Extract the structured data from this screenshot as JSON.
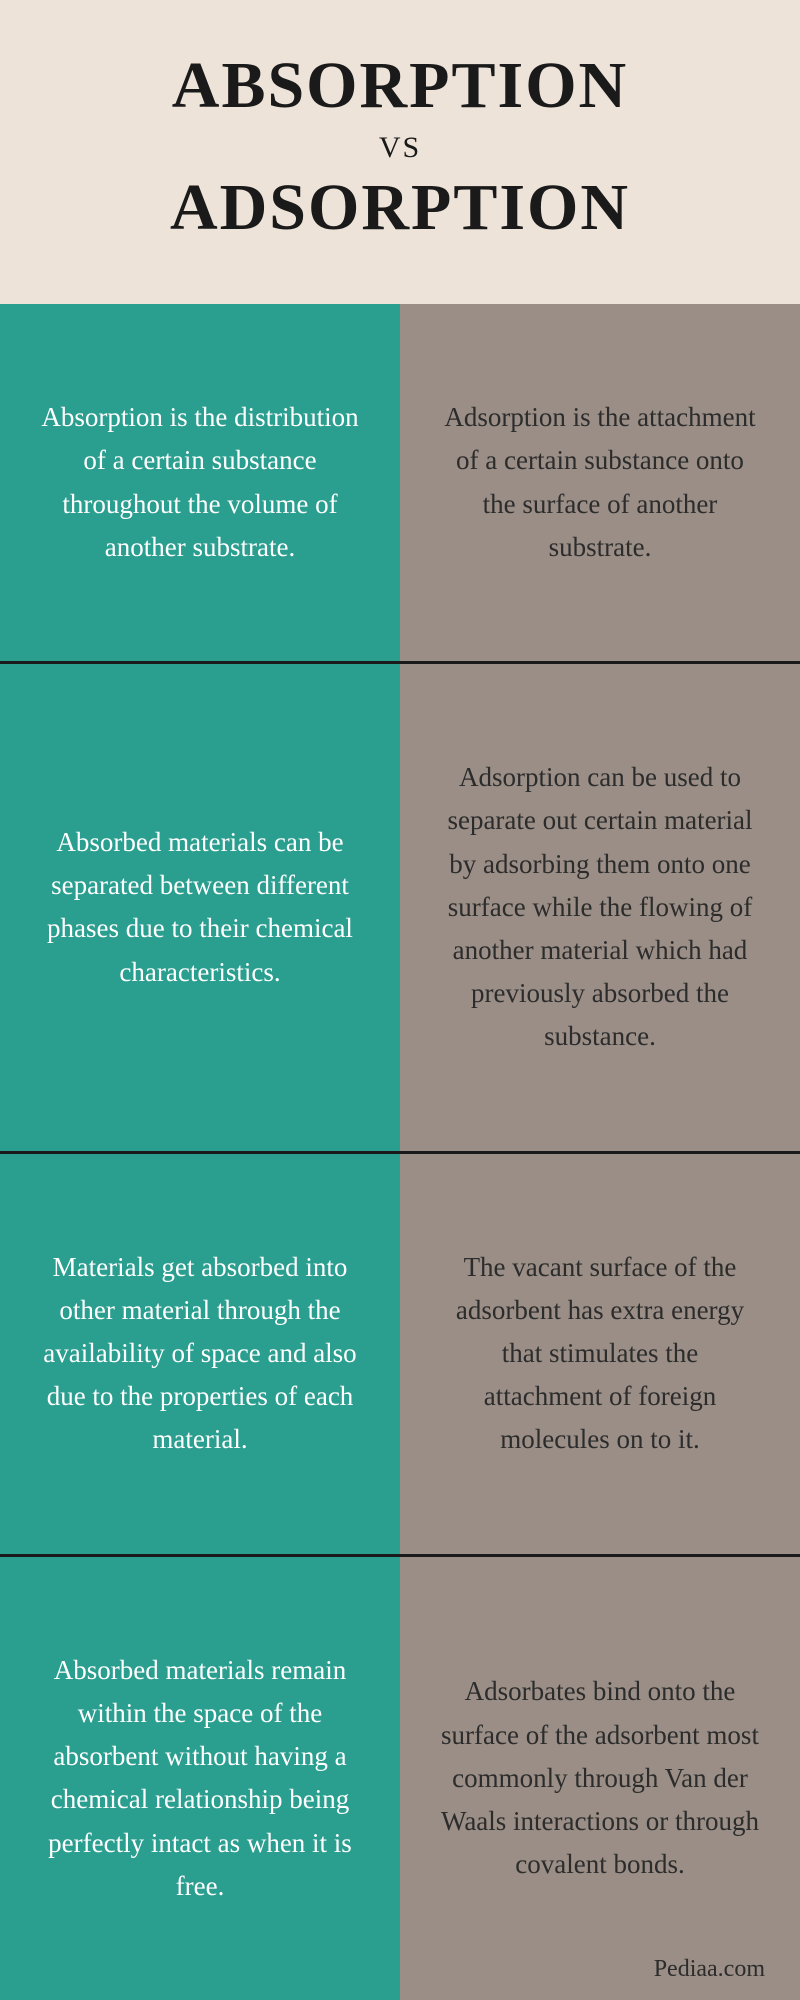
{
  "header": {
    "title1": "ABSORPTION",
    "vs": "VS",
    "title2": "ADSORPTION",
    "bg_color": "#eee3d8",
    "text_color": "#1a1a1a",
    "title_fontsize": 66,
    "vs_fontsize": 30
  },
  "columns": {
    "left_bg": "#2a9e8f",
    "right_bg": "#9a8e86",
    "left_text_color": "#ffffff",
    "right_text_color": "#2c2c2c",
    "cell_fontsize": 27,
    "divider_color": "#1a1a1a",
    "divider_width": 3
  },
  "rows": [
    {
      "left": "Absorption is the distribution of a certain substance throughout the volume of another substrate.",
      "right": "Adsorption is the attachment of a certain substance onto the surface of another substrate."
    },
    {
      "left": "Absorbed materials can be separated between different phases due to their chemical characteristics.",
      "right": "Adsorption can be used to separate out certain material by adsorbing them onto one surface while the flowing of another material which had previously absorbed the substance."
    },
    {
      "left": "Materials get absorbed into other material through the availability of space and also due to the properties of each material.",
      "right": "The vacant surface of the adsorbent has extra energy that stimulates the attachment of foreign molecules on to it."
    },
    {
      "left": "Absorbed materials remain within the space of the absorbent without having a chemical relationship being perfectly intact as when it is free.",
      "right": "Adsorbates bind onto the surface of the adsorbent most commonly through Van der Waals interactions or through covalent bonds."
    }
  ],
  "attribution": {
    "text": "Pediaa.com",
    "color": "#2c2c2c",
    "fontsize": 24
  }
}
